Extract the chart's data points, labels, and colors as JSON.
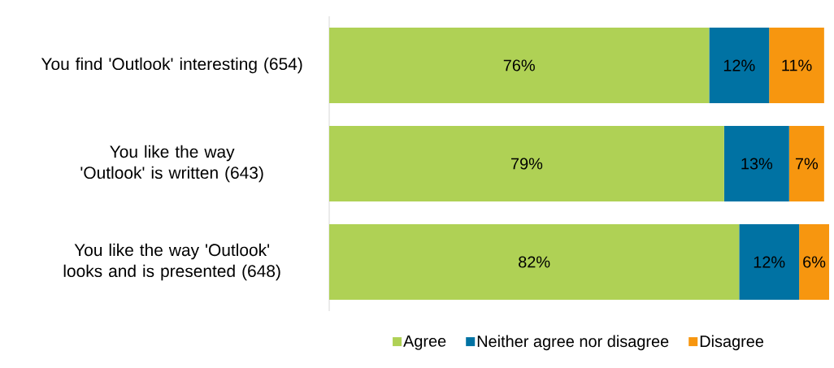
{
  "chart_data": {
    "type": "bar",
    "orientation": "horizontal",
    "stacked": true,
    "categories": [
      "You find 'Outlook' interesting (654)",
      "You like the way 'Outlook' is written (643)",
      "You like the way 'Outlook' looks and is presented (648)"
    ],
    "series": [
      {
        "name": "Agree",
        "color": "#afd155",
        "values": [
          76,
          79,
          82
        ],
        "value_labels": [
          "76%",
          "79%",
          "82%"
        ]
      },
      {
        "name": "Neither agree nor disagree",
        "color": "#0072a3",
        "values": [
          12,
          13,
          12
        ],
        "value_labels": [
          "12%",
          "13%",
          "12%"
        ]
      },
      {
        "name": "Disagree",
        "color": "#f7960f",
        "values": [
          11,
          7,
          6
        ],
        "value_labels": [
          "11%",
          "7%",
          "6%"
        ]
      }
    ],
    "legend": "bottom"
  }
}
